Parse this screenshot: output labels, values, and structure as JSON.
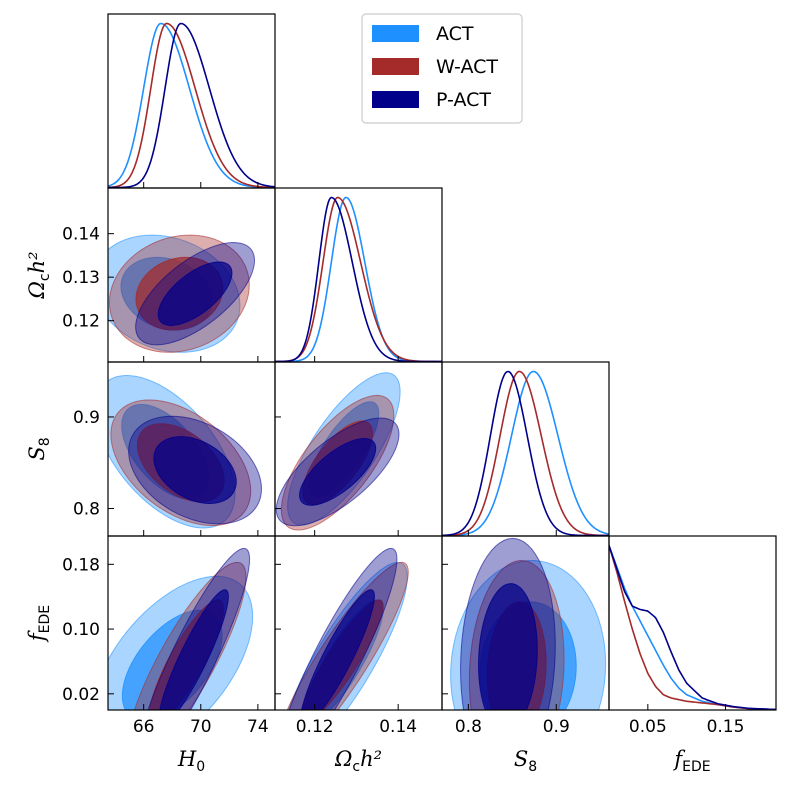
{
  "chart_data": {
    "type": "corner",
    "parameters": [
      {
        "key": "H0",
        "label_main": "H",
        "label_sub": "0",
        "range": [
          63.5,
          75.2
        ],
        "ticks": [
          66,
          70,
          74
        ],
        "tick_labels": [
          "66",
          "70",
          "74"
        ]
      },
      {
        "key": "omch2",
        "label_main": "Ω",
        "label_sub": "c",
        "label_tail": "h²",
        "range": [
          0.1105,
          0.1505
        ],
        "ticks": [
          0.12,
          0.13,
          0.14
        ],
        "tick_labels": [
          "0.12",
          "0.13",
          "0.14"
        ]
      },
      {
        "key": "S8",
        "label_main": "S",
        "label_sub": "8",
        "range": [
          0.77,
          0.96
        ],
        "ticks": [
          0.8,
          0.9
        ],
        "tick_labels": [
          "0.8",
          "0.9"
        ]
      },
      {
        "key": "fEDE",
        "label_main": "f",
        "label_sub": "EDE",
        "range": [
          0.0,
          0.215
        ],
        "ticks": [
          0.02,
          0.1,
          0.18
        ],
        "tick_labels": [
          "0.02",
          "0.10",
          "0.18"
        ],
        "xticks": [
          0.05,
          0.15
        ],
        "xtick_labels": [
          "0.05",
          "0.15"
        ]
      }
    ],
    "xtick_override": {
      "omch2": {
        "ticks": [
          0.12,
          0.14
        ],
        "labels": [
          "0.12",
          "0.14"
        ]
      }
    },
    "series": [
      {
        "name": "ACT",
        "color": "#1E90FF",
        "marginals": {
          "H0": {
            "mean": 67.2,
            "sl": 1.2,
            "sr": 2.0
          },
          "omch2": {
            "mean": 0.1275,
            "sl": 0.0035,
            "sr": 0.0045
          },
          "S8": {
            "mean": 0.874,
            "sl": 0.025,
            "sr": 0.028
          },
          "fEDE": {
            "peak": 0.0,
            "curve": [
              [
                0.0,
                1.0
              ],
              [
                0.01,
                0.87
              ],
              [
                0.02,
                0.74
              ],
              [
                0.03,
                0.63
              ],
              [
                0.04,
                0.54
              ],
              [
                0.05,
                0.45
              ],
              [
                0.06,
                0.36
              ],
              [
                0.07,
                0.27
              ],
              [
                0.08,
                0.19
              ],
              [
                0.09,
                0.13
              ],
              [
                0.1,
                0.09
              ],
              [
                0.12,
                0.05
              ],
              [
                0.14,
                0.03
              ],
              [
                0.16,
                0.015
              ],
              [
                0.18,
                0.006
              ],
              [
                0.215,
                0.0
              ]
            ]
          }
        },
        "contours": {
          "H0-omch2": {
            "c": [
              67.6,
              0.1262
            ],
            "s": [
              2.1,
              0.0055
            ],
            "rho": -0.2
          },
          "H0-S8": {
            "c": [
              67.5,
              0.862
            ],
            "s": [
              2.0,
              0.034
            ],
            "rho": -0.55
          },
          "omch2-S8": {
            "c": [
              0.127,
              0.865
            ],
            "s": [
              0.0055,
              0.034
            ],
            "rho": 0.75
          },
          "H0-fEDE": {
            "c": [
              68.0,
              0.055
            ],
            "s": [
              2.3,
              0.045
            ],
            "rho": 0.55
          },
          "omch2-fEDE": {
            "c": [
              0.127,
              0.06
            ],
            "s": [
              0.0062,
              0.05
            ],
            "rho": 0.85
          },
          "S8-fEDE": {
            "c": [
              0.868,
              0.05
            ],
            "s": [
              0.036,
              0.055
            ],
            "rho": 0.05
          }
        }
      },
      {
        "name": "W-ACT",
        "color": "#A52A2A",
        "marginals": {
          "H0": {
            "mean": 67.6,
            "sl": 1.1,
            "sr": 2.0
          },
          "omch2": {
            "mean": 0.1255,
            "sl": 0.0035,
            "sr": 0.0055
          },
          "S8": {
            "mean": 0.858,
            "sl": 0.022,
            "sr": 0.025
          },
          "fEDE": {
            "peak": 0.0,
            "curve": [
              [
                0.0,
                1.0
              ],
              [
                0.01,
                0.84
              ],
              [
                0.02,
                0.66
              ],
              [
                0.03,
                0.49
              ],
              [
                0.04,
                0.34
              ],
              [
                0.05,
                0.22
              ],
              [
                0.06,
                0.14
              ],
              [
                0.07,
                0.09
              ],
              [
                0.08,
                0.07
              ],
              [
                0.09,
                0.06
              ],
              [
                0.1,
                0.05
              ],
              [
                0.12,
                0.04
              ],
              [
                0.14,
                0.03
              ],
              [
                0.16,
                0.015
              ],
              [
                0.18,
                0.005
              ],
              [
                0.215,
                0.0
              ]
            ]
          }
        },
        "contours": {
          "H0-omch2": {
            "c": [
              68.5,
              0.1262
            ],
            "s": [
              2.0,
              0.0055
            ],
            "rho": 0.15
          },
          "H0-S8": {
            "c": [
              68.6,
              0.85
            ],
            "s": [
              2.0,
              0.028
            ],
            "rho": -0.45
          },
          "omch2-S8": {
            "c": [
              0.1255,
              0.85
            ],
            "s": [
              0.0055,
              0.03
            ],
            "rho": 0.7
          },
          "H0-fEDE": {
            "c": [
              69.0,
              0.06
            ],
            "s": [
              1.7,
              0.05
            ],
            "rho": 0.85
          },
          "omch2-fEDE": {
            "c": [
              0.1265,
              0.06
            ],
            "s": [
              0.0065,
              0.05
            ],
            "rho": 0.9
          },
          "S8-fEDE": {
            "c": [
              0.855,
              0.05
            ],
            "s": [
              0.022,
              0.055
            ],
            "rho": 0.1
          }
        }
      },
      {
        "name": "P-ACT",
        "color": "#00008B",
        "marginals": {
          "H0": {
            "mean": 68.6,
            "sl": 1.1,
            "sr": 2.0
          },
          "omch2": {
            "mean": 0.124,
            "sl": 0.003,
            "sr": 0.005
          },
          "S8": {
            "mean": 0.845,
            "sl": 0.02,
            "sr": 0.022
          },
          "fEDE": {
            "peak": 0.0,
            "curve": [
              [
                0.0,
                1.0
              ],
              [
                0.01,
                0.86
              ],
              [
                0.02,
                0.72
              ],
              [
                0.03,
                0.63
              ],
              [
                0.04,
                0.61
              ],
              [
                0.05,
                0.6
              ],
              [
                0.06,
                0.56
              ],
              [
                0.07,
                0.47
              ],
              [
                0.08,
                0.35
              ],
              [
                0.09,
                0.24
              ],
              [
                0.1,
                0.16
              ],
              [
                0.12,
                0.07
              ],
              [
                0.14,
                0.035
              ],
              [
                0.16,
                0.018
              ],
              [
                0.18,
                0.007
              ],
              [
                0.215,
                0.0
              ]
            ]
          }
        },
        "contours": {
          "H0-omch2": {
            "c": [
              69.6,
              0.1262
            ],
            "s": [
              1.7,
              0.0048
            ],
            "rho": 0.65
          },
          "H0-S8": {
            "c": [
              69.6,
              0.842
            ],
            "s": [
              1.9,
              0.024
            ],
            "rho": -0.35
          },
          "omch2-S8": {
            "c": [
              0.1255,
              0.84
            ],
            "s": [
              0.006,
              0.024
            ],
            "rho": 0.7
          },
          "H0-fEDE": {
            "c": [
              69.5,
              0.065
            ],
            "s": [
              1.6,
              0.055
            ],
            "rho": 0.9
          },
          "omch2-fEDE": {
            "c": [
              0.1255,
              0.065
            ],
            "s": [
              0.0058,
              0.055
            ],
            "rho": 0.9
          },
          "S8-fEDE": {
            "c": [
              0.845,
              0.065
            ],
            "s": [
              0.022,
              0.06
            ],
            "rho": 0.1
          }
        }
      }
    ],
    "legend": {
      "position": "upper-right",
      "entries": [
        "ACT",
        "W-ACT",
        "P-ACT"
      ]
    }
  }
}
